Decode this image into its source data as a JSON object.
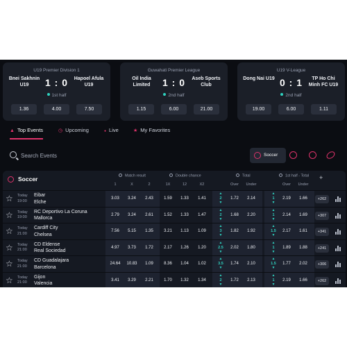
{
  "featured": [
    {
      "league": "U19 Premier Division 1",
      "home": "Bnei Sakhnin U19",
      "away": "Hapoel Afula U19",
      "score": "1 : 0",
      "period": "1st half",
      "odds": [
        "1.36",
        "4.00",
        "7.50"
      ]
    },
    {
      "league": "Guwahati Premier League",
      "home": "Oil India Limited",
      "away": "Aseb Sports Club",
      "score": "1 : 0",
      "period": "2nd half",
      "odds": [
        "1.15",
        "6.00",
        "21.00"
      ]
    },
    {
      "league": "U19 V-League",
      "home": "Dong Nai U19",
      "away": "TP Ho Chi Minh FC U19",
      "score": "0 : 1",
      "period": "2nd half",
      "odds": [
        "19.00",
        "6.00",
        "1.11"
      ]
    }
  ],
  "tabs": [
    {
      "label": "Top Events",
      "icon": "trophy-icon",
      "active": true
    },
    {
      "label": "Upcoming",
      "icon": "clock-icon",
      "active": false
    },
    {
      "label": "Live",
      "icon": "live-dot-icon",
      "active": false
    },
    {
      "label": "My Favorites",
      "icon": "star-icon",
      "active": false
    }
  ],
  "search": {
    "placeholder": "Search Events"
  },
  "sports": {
    "selected": "Soccer",
    "others": [
      "basketball-icon",
      "tennis-icon",
      "rugby-icon"
    ]
  },
  "table": {
    "sport": "Soccer",
    "groups": {
      "match_result": "Match result",
      "double_chance": "Double chance",
      "total": "Total",
      "first_half_total": "1st half - Total"
    },
    "subheaders": {
      "mr": [
        "1",
        "X",
        "2"
      ],
      "dc": [
        "1X",
        "12",
        "X2"
      ],
      "total": [
        "Over",
        "Under"
      ],
      "fh": [
        "Over",
        "Under"
      ]
    },
    "plus": "+",
    "rows": [
      {
        "day": "Today",
        "time": "19:00",
        "home": "Eibar",
        "away": "Elche",
        "mr": [
          "3.03",
          "3.24",
          "2.43"
        ],
        "dc": [
          "1.59",
          "1.33",
          "1.41"
        ],
        "total_line": "2",
        "total": [
          "1.72",
          "2.14"
        ],
        "fh_line": "1",
        "fh": [
          "2.19",
          "1.66"
        ],
        "more": "+262"
      },
      {
        "day": "Today",
        "time": "19:00",
        "home": "RC Deportivo La Coruna",
        "away": "Mallorca",
        "mr": [
          "2.79",
          "3.24",
          "2.61"
        ],
        "dc": [
          "1.52",
          "1.33",
          "1.47"
        ],
        "total_line": "2",
        "total": [
          "1.68",
          "2.20"
        ],
        "fh_line": "1",
        "fh": [
          "2.14",
          "1.69"
        ],
        "more": "+307"
      },
      {
        "day": "Today",
        "time": "21:00",
        "home": "Cardiff City",
        "away": "Chelsea",
        "mr": [
          "7.56",
          "5.15",
          "1.35"
        ],
        "dc": [
          "3.21",
          "1.13",
          "1.09"
        ],
        "total_line": "3",
        "total": [
          "1.82",
          "1.92"
        ],
        "fh_line": "1.5",
        "fh": [
          "2.17",
          "1.61"
        ],
        "more": "+341"
      },
      {
        "day": "Today",
        "time": "21:00",
        "home": "CD Eldense",
        "away": "Real Sociedad",
        "mr": [
          "4.97",
          "3.73",
          "1.72"
        ],
        "dc": [
          "2.17",
          "1.26",
          "1.20"
        ],
        "total_line": "2.5",
        "total": [
          "2.02",
          "1.80"
        ],
        "fh_line": "1",
        "fh": [
          "1.89",
          "1.88"
        ],
        "more": "+241"
      },
      {
        "day": "Today",
        "time": "21:00",
        "home": "CD Guadalajara",
        "away": "Barcelona",
        "mr": [
          "24.64",
          "10.83",
          "1.09"
        ],
        "dc": [
          "8.36",
          "1.04",
          "1.02"
        ],
        "total_line": "3.5",
        "total": [
          "1.74",
          "2.10"
        ],
        "fh_line": "1.5",
        "fh": [
          "1.77",
          "2.02"
        ],
        "more": "+306"
      },
      {
        "day": "Today",
        "time": "21:00",
        "home": "Gijon",
        "away": "Valencia",
        "mr": [
          "3.41",
          "3.29",
          "2.21"
        ],
        "dc": [
          "1.70",
          "1.32",
          "1.34"
        ],
        "total_line": "2",
        "total": [
          "1.72",
          "2.13"
        ],
        "fh_line": "1",
        "fh": [
          "2.19",
          "1.66"
        ],
        "more": "+262"
      }
    ]
  },
  "colors": {
    "accent": "#e0336b",
    "teal": "#2fd3c0",
    "bg": "#0b0d12",
    "card": "#1b1f28"
  }
}
